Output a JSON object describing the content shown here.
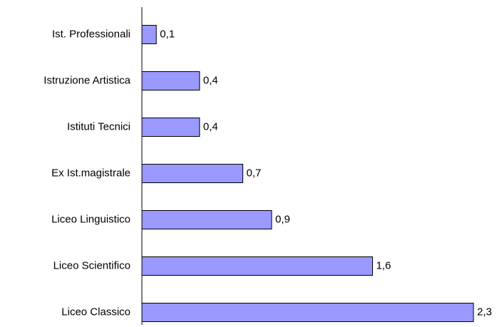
{
  "chart_data": {
    "type": "bar",
    "orientation": "horizontal",
    "categories": [
      "Ist. Professionali",
      "Istruzione Artistica",
      "Istituti Tecnici",
      "Ex Ist.magistrale",
      "Liceo Linguistico",
      "Liceo Scientifico",
      "Liceo Classico"
    ],
    "values": [
      0.1,
      0.4,
      0.4,
      0.7,
      0.9,
      1.6,
      2.3
    ],
    "value_labels": [
      "0,1",
      "0,4",
      "0,4",
      "0,7",
      "0,9",
      "1,6",
      "2,3"
    ],
    "color": "#9999ff"
  }
}
